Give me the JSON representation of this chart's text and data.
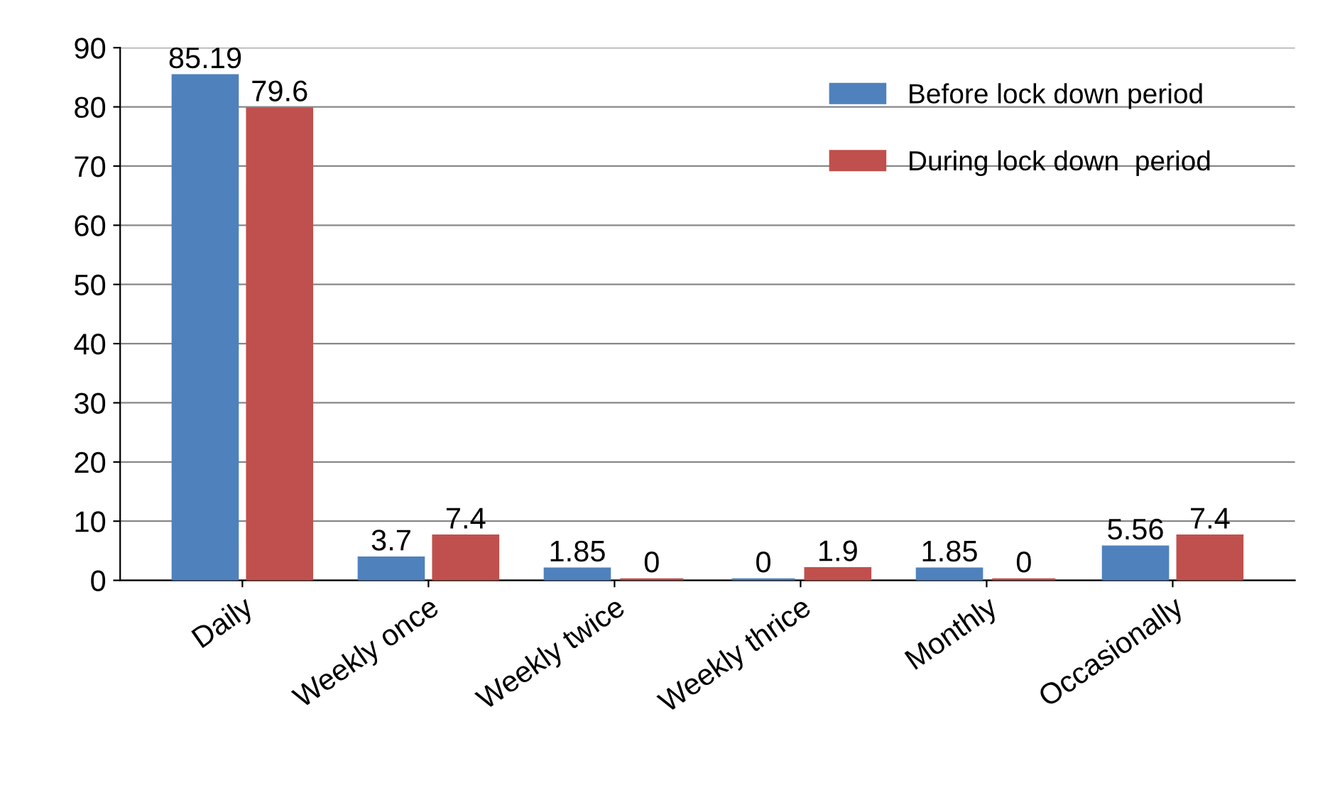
{
  "chart_data": {
    "type": "bar",
    "categories": [
      "Daily",
      "Weekly once",
      "Weekly twice",
      "Weekly thrice",
      "Monthly",
      "Occasionally"
    ],
    "series": [
      {
        "name": "Before lock down period",
        "color": "#4f81bd",
        "values": [
          85.19,
          3.7,
          1.85,
          0,
          1.85,
          5.56
        ]
      },
      {
        "name": "During lock down  period",
        "color": "#c0504d",
        "values": [
          79.6,
          7.4,
          0,
          1.9,
          0,
          7.4
        ]
      }
    ],
    "ylim": [
      0,
      90
    ],
    "yticks": [
      0,
      10,
      20,
      30,
      40,
      50,
      60,
      70,
      80,
      90
    ],
    "grid": "y",
    "legend": "top right",
    "data_labels": true
  }
}
